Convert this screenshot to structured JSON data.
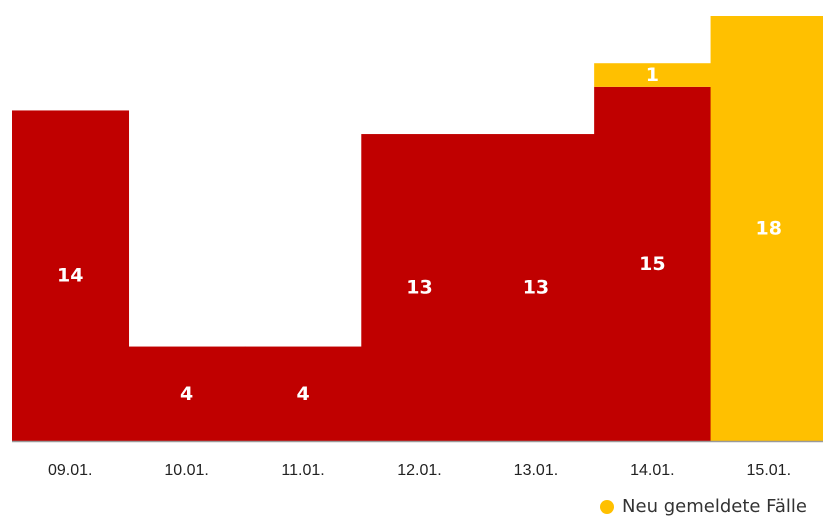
{
  "chart_data": {
    "type": "bar",
    "stacked": true,
    "categories": [
      "09.01.",
      "10.01.",
      "11.01.",
      "12.01.",
      "13.01.",
      "14.01.",
      "15.01."
    ],
    "series": [
      {
        "values": [
          14,
          4,
          4,
          13,
          13,
          15,
          0
        ],
        "color": "#C00000"
      },
      {
        "name": "Neu gemeldete Fälle",
        "values": [
          0,
          0,
          0,
          0,
          0,
          1,
          18
        ],
        "color": "#FFC000"
      }
    ],
    "ylim": [
      0,
      18
    ],
    "grid": false,
    "legend": "bottom-right",
    "legend_series": 1
  }
}
